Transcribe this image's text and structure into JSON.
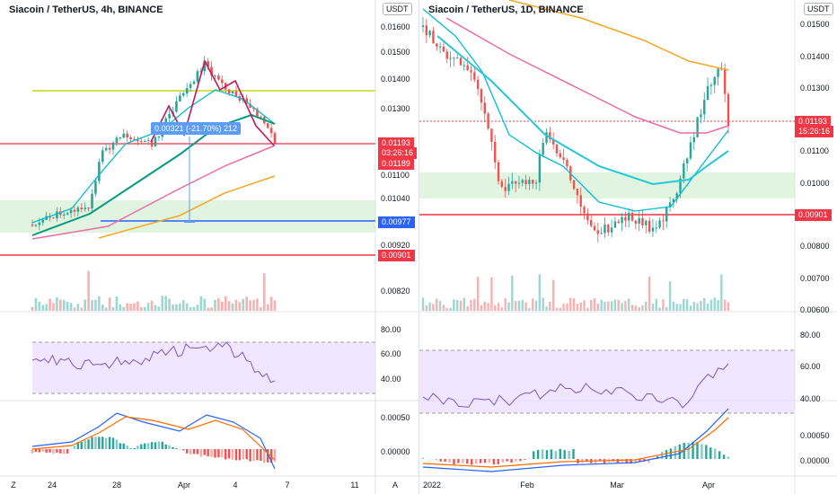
{
  "colors": {
    "up": "#26a69a",
    "down": "#ef5350",
    "rsi_band": "#e9dcff",
    "rsi_line": "#7e57c2",
    "ma_cyan": "#00bcd4",
    "ma_teal": "#089981",
    "ma_pink": "#ec6ba5",
    "ma_orange": "#f5a623",
    "ma_lime": "#d4e157",
    "zone": "#d6f0d6",
    "red_line": "#f23645",
    "blue_line": "#2962ff"
  },
  "left": {
    "title": "Siacoin / TetherUS, 4h, BINANCE",
    "currency": "USDT",
    "price_ticks": [
      "0.01600",
      "0.01500",
      "0.01400",
      "0.01300",
      "0.01100",
      "0.01040",
      "0.00920",
      "0.00820"
    ],
    "labels": {
      "last_price": "0.01193",
      "countdown": "03:26:16",
      "prev_price": "0.01189",
      "blue_level": "0.00977",
      "red_level": "0.00901"
    },
    "measure": "0.00321 (-21.70%) 212",
    "rsi_ticks": [
      "80.00",
      "60.00",
      "40.00"
    ],
    "macd_ticks": [
      "0.00050",
      "0.00000"
    ],
    "time_ticks": [
      "24",
      "28",
      "Apr",
      "4",
      "7",
      "11"
    ],
    "corner": "Z"
  },
  "right": {
    "title": "Siacoin / TetherUS, 1D, BINANCE",
    "currency": "USDT",
    "price_ticks": [
      "0.01500",
      "0.01400",
      "0.01300",
      "0.01100",
      "0.01000",
      "0.00800",
      "0.00700",
      "0.00600"
    ],
    "labels": {
      "last_price": "0.01193",
      "countdown": "15:26:16",
      "red_level": "0.00901"
    },
    "rsi_ticks": [
      "80.00",
      "60.00",
      "40.00"
    ],
    "macd_ticks": [
      "0.00050",
      "0.00000"
    ],
    "time_ticks": [
      "2022",
      "Feb",
      "Mar",
      "Apr"
    ],
    "corner": "A"
  }
}
